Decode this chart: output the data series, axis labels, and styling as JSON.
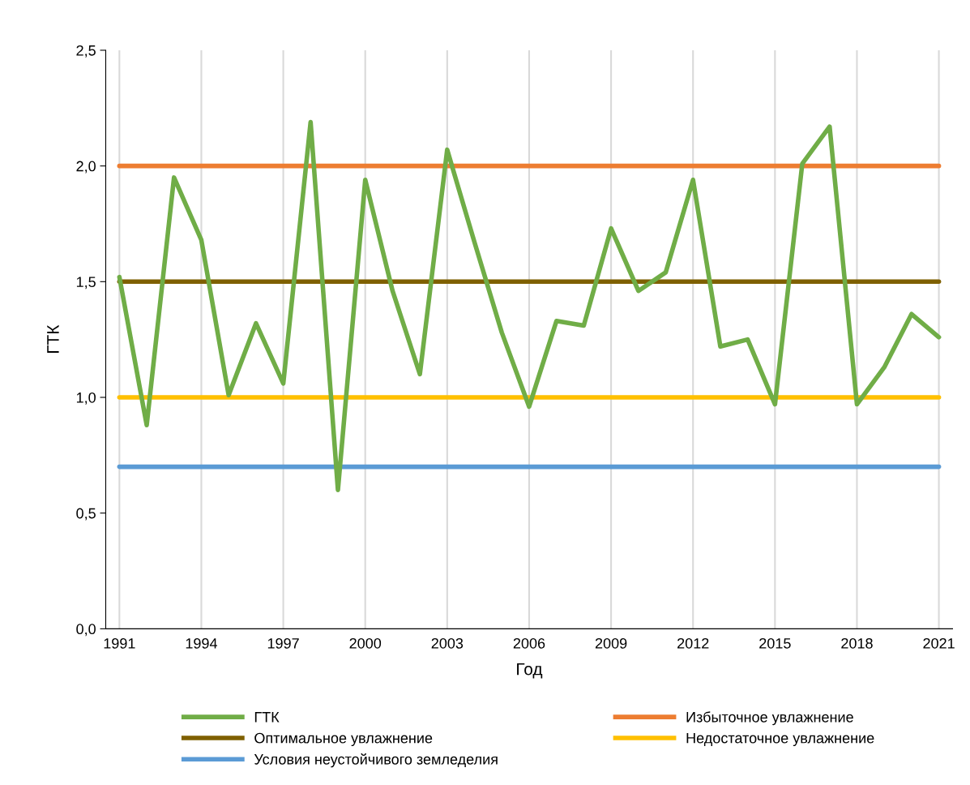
{
  "chart_data": {
    "type": "line",
    "xlabel": "Год",
    "ylabel": "ГТК",
    "x": [
      1991,
      1992,
      1993,
      1994,
      1995,
      1996,
      1997,
      1998,
      1999,
      2000,
      2001,
      2002,
      2003,
      2004,
      2005,
      2006,
      2007,
      2008,
      2009,
      2010,
      2011,
      2012,
      2013,
      2014,
      2015,
      2016,
      2017,
      2018,
      2019,
      2020,
      2021
    ],
    "series": [
      {
        "name": "ГТК",
        "color": "#70ad47",
        "values": [
          1.52,
          0.88,
          1.95,
          1.68,
          1.01,
          1.32,
          1.06,
          2.19,
          0.6,
          1.94,
          1.46,
          1.1,
          2.07,
          1.67,
          1.28,
          0.96,
          1.33,
          1.31,
          1.73,
          1.46,
          1.54,
          1.94,
          1.22,
          1.25,
          0.97,
          2.01,
          2.17,
          0.97,
          1.13,
          1.36,
          1.26
        ]
      },
      {
        "name": "Избыточное увлажнение",
        "color": "#ed7d31",
        "values": [
          2,
          2,
          2,
          2,
          2,
          2,
          2,
          2,
          2,
          2,
          2,
          2,
          2,
          2,
          2,
          2,
          2,
          2,
          2,
          2,
          2,
          2,
          2,
          2,
          2,
          2,
          2,
          2,
          2,
          2,
          2
        ]
      },
      {
        "name": "Оптимальное увлажнение",
        "color": "#7f6000",
        "values": [
          1.5,
          1.5,
          1.5,
          1.5,
          1.5,
          1.5,
          1.5,
          1.5,
          1.5,
          1.5,
          1.5,
          1.5,
          1.5,
          1.5,
          1.5,
          1.5,
          1.5,
          1.5,
          1.5,
          1.5,
          1.5,
          1.5,
          1.5,
          1.5,
          1.5,
          1.5,
          1.5,
          1.5,
          1.5,
          1.5,
          1.5
        ]
      },
      {
        "name": "Недостаточное увлажнение",
        "color": "#ffc000",
        "values": [
          1,
          1,
          1,
          1,
          1,
          1,
          1,
          1,
          1,
          1,
          1,
          1,
          1,
          1,
          1,
          1,
          1,
          1,
          1,
          1,
          1,
          1,
          1,
          1,
          1,
          1,
          1,
          1,
          1,
          1,
          1
        ]
      },
      {
        "name": "Условия неустойчивого земледелия",
        "color": "#5b9bd5",
        "values": [
          0.7,
          0.7,
          0.7,
          0.7,
          0.7,
          0.7,
          0.7,
          0.7,
          0.7,
          0.7,
          0.7,
          0.7,
          0.7,
          0.7,
          0.7,
          0.7,
          0.7,
          0.7,
          0.7,
          0.7,
          0.7,
          0.7,
          0.7,
          0.7,
          0.7,
          0.7,
          0.7,
          0.7,
          0.7,
          0.7,
          0.7
        ]
      }
    ],
    "xlim": [
      1990.5,
      2021.5
    ],
    "xticks": [
      1991,
      1994,
      1997,
      2000,
      2003,
      2006,
      2009,
      2012,
      2015,
      2018,
      2021
    ],
    "ylim": [
      0,
      2.5
    ],
    "yticks": [
      {
        "value": 0,
        "label": "0,0"
      },
      {
        "value": 0.5,
        "label": "0,5"
      },
      {
        "value": 1,
        "label": "1,0"
      },
      {
        "value": 1.5,
        "label": "1,5"
      },
      {
        "value": 2,
        "label": "2,0"
      },
      {
        "value": 2.5,
        "label": "2,5"
      }
    ],
    "grid": "x",
    "legend": "bottom",
    "marker": "none",
    "line_style": "solid"
  }
}
